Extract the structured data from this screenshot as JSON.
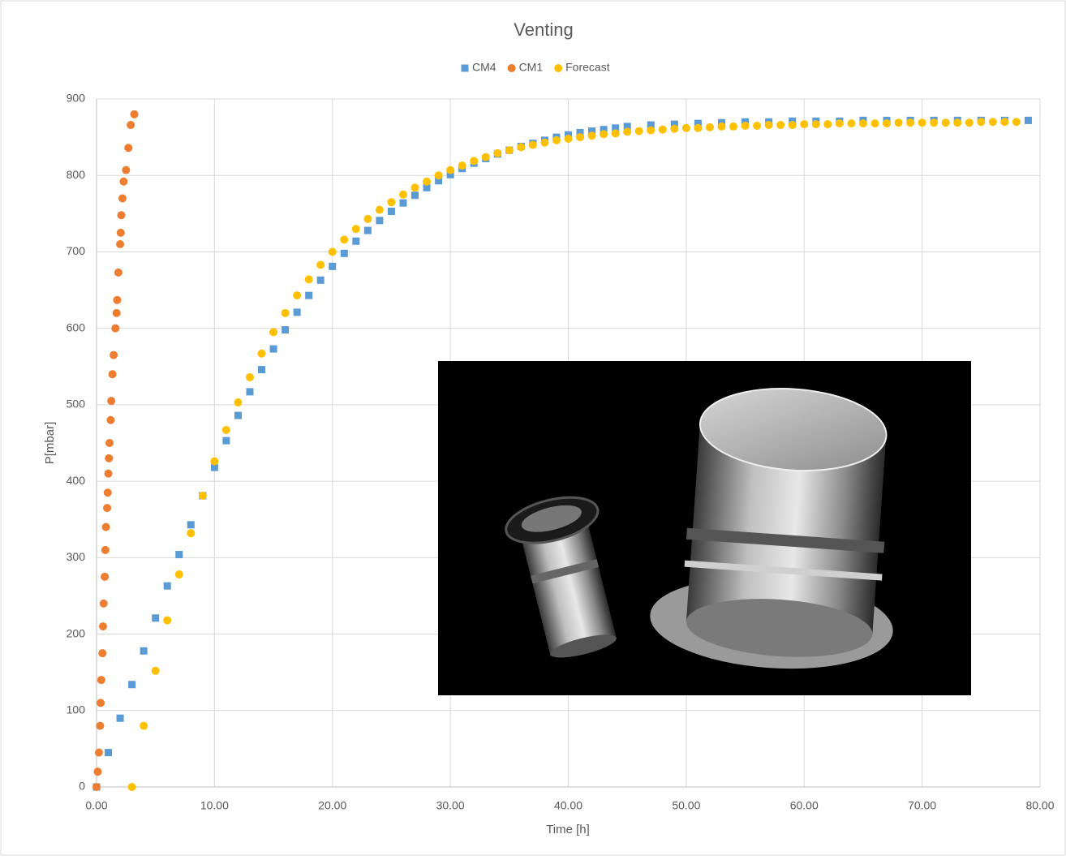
{
  "chart_data": {
    "type": "scatter",
    "title": "Venting",
    "x_label": "Time [h]",
    "y_label": "P[mbar]",
    "xlim": [
      0,
      80
    ],
    "ylim": [
      0,
      900
    ],
    "xticks": [
      {
        "value": 0,
        "label": "0.00"
      },
      {
        "value": 10,
        "label": "10.00"
      },
      {
        "value": 20,
        "label": "20.00"
      },
      {
        "value": 30,
        "label": "30.00"
      },
      {
        "value": 40,
        "label": "40.00"
      },
      {
        "value": 50,
        "label": "50.00"
      },
      {
        "value": 60,
        "label": "60.00"
      },
      {
        "value": 70,
        "label": "70.00"
      },
      {
        "value": 80,
        "label": "80.00"
      }
    ],
    "yticks": [
      0,
      100,
      200,
      300,
      400,
      500,
      600,
      700,
      800,
      900
    ],
    "grid": true,
    "legend": "top",
    "series": [
      {
        "name": "CM4",
        "color": "#5b9bd5",
        "marker": "square",
        "x": [
          0,
          1,
          2,
          3,
          4,
          5,
          6,
          7,
          8,
          9,
          10,
          11,
          12,
          13,
          14,
          15,
          16,
          17,
          18,
          19,
          20,
          21,
          22,
          23,
          24,
          25,
          26,
          27,
          28,
          29,
          30,
          31,
          32,
          33,
          34,
          35,
          36,
          37,
          38,
          39,
          40,
          41,
          42,
          43,
          44,
          45,
          47,
          49,
          51,
          53,
          55,
          57,
          59,
          61,
          63,
          65,
          67,
          69,
          71,
          73,
          75,
          77,
          79
        ],
        "values": [
          0,
          45,
          90,
          134,
          178,
          221,
          263,
          304,
          343,
          381,
          418,
          453,
          486,
          517,
          546,
          573,
          598,
          621,
          643,
          663,
          681,
          698,
          714,
          728,
          741,
          753,
          764,
          774,
          784,
          793,
          801,
          809,
          816,
          822,
          828,
          833,
          838,
          842,
          846,
          850,
          853,
          856,
          858,
          860,
          862,
          864,
          866,
          867,
          868,
          869,
          870,
          870,
          871,
          871,
          871,
          872,
          872,
          872,
          872,
          872,
          872,
          872,
          872
        ]
      },
      {
        "name": "CM1",
        "color": "#ed7d31",
        "marker": "circle",
        "x": [
          0,
          0.1,
          0.2,
          0.3,
          0.35,
          0.4,
          0.5,
          0.55,
          0.6,
          0.7,
          0.75,
          0.8,
          0.9,
          0.95,
          1.0,
          1.05,
          1.1,
          1.2,
          1.25,
          1.35,
          1.45,
          1.6,
          1.7,
          1.75,
          1.85,
          2.0,
          2.05,
          2.1,
          2.2,
          2.3,
          2.5,
          2.7,
          2.9,
          3.2
        ],
        "values": [
          0,
          20,
          45,
          80,
          110,
          140,
          175,
          210,
          240,
          275,
          310,
          340,
          365,
          385,
          410,
          430,
          450,
          480,
          505,
          540,
          565,
          600,
          620,
          637,
          673,
          710,
          725,
          748,
          770,
          792,
          807,
          836,
          866,
          880
        ]
      },
      {
        "name": "Forecast",
        "color": "#ffc000",
        "marker": "circle",
        "x": [
          3,
          4,
          5,
          6,
          7,
          8,
          9,
          10,
          11,
          12,
          13,
          14,
          15,
          16,
          17,
          18,
          19,
          20,
          21,
          22,
          23,
          24,
          25,
          26,
          27,
          28,
          29,
          30,
          31,
          32,
          33,
          34,
          35,
          36,
          37,
          38,
          39,
          40,
          41,
          42,
          43,
          44,
          45,
          46,
          47,
          48,
          49,
          50,
          51,
          52,
          53,
          54,
          55,
          56,
          57,
          58,
          59,
          60,
          61,
          62,
          63,
          64,
          65,
          66,
          67,
          68,
          69,
          70,
          71,
          72,
          73,
          74,
          75,
          76,
          77,
          78
        ],
        "values": [
          0,
          80,
          152,
          218,
          278,
          332,
          381,
          426,
          467,
          503,
          536,
          567,
          595,
          620,
          643,
          664,
          683,
          700,
          716,
          730,
          743,
          755,
          765,
          775,
          784,
          792,
          800,
          807,
          813,
          819,
          824,
          829,
          833,
          837,
          840,
          843,
          846,
          848,
          850,
          852,
          854,
          855,
          857,
          858,
          859,
          860,
          861,
          862,
          862,
          863,
          864,
          864,
          865,
          865,
          866,
          866,
          866,
          867,
          867,
          867,
          868,
          868,
          868,
          868,
          868,
          869,
          869,
          869,
          869,
          869,
          869,
          869,
          870,
          870,
          870,
          870
        ]
      }
    ]
  }
}
